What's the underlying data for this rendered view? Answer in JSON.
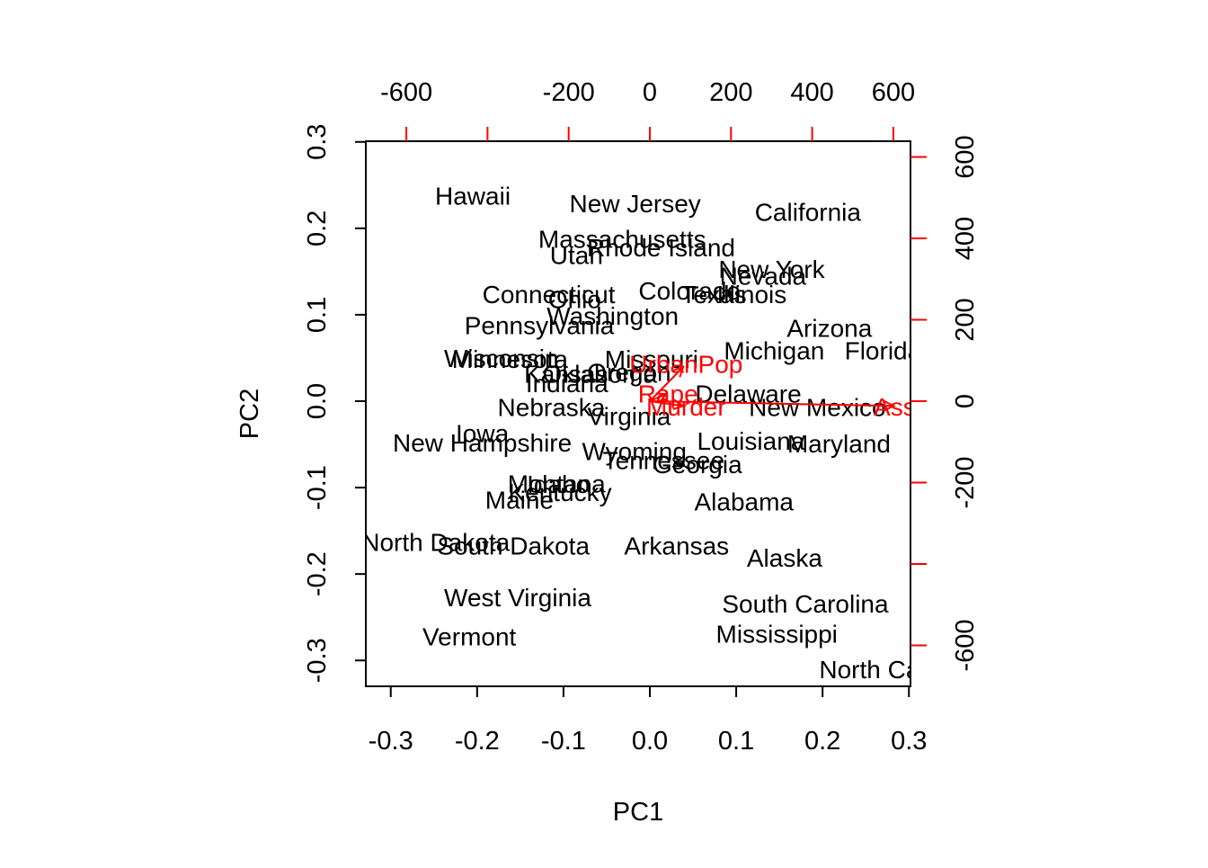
{
  "chart_data": {
    "type": "scatter",
    "title": "",
    "xlabel": "PC1",
    "ylabel": "PC2",
    "xlim": [
      -0.3,
      0.3
    ],
    "ylim": [
      -0.3,
      0.3
    ],
    "x_ticks": [
      "-0.3",
      "-0.2",
      "-0.1",
      "0.0",
      "0.1",
      "0.2",
      "0.3"
    ],
    "y_ticks": [
      "-0.3",
      "-0.2",
      "-0.1",
      "0.0",
      "0.1",
      "0.2",
      "0.3"
    ],
    "top_ticks": [
      "-600",
      "-200",
      "0",
      "200",
      "400",
      "600"
    ],
    "right_ticks": [
      "600",
      "400",
      "200",
      "0",
      "-200",
      "-600"
    ],
    "secondary_color": "#ff0000",
    "points": [
      {
        "label": "Hawaii",
        "x": -0.205,
        "y": 0.238
      },
      {
        "label": "New Jersey",
        "x": -0.017,
        "y": 0.229
      },
      {
        "label": "California",
        "x": 0.183,
        "y": 0.219
      },
      {
        "label": "Massachusetts",
        "x": -0.032,
        "y": 0.188
      },
      {
        "label": "Rhode Island",
        "x": 0.013,
        "y": 0.178
      },
      {
        "label": "Utah",
        "x": -0.085,
        "y": 0.169
      },
      {
        "label": "New York",
        "x": 0.141,
        "y": 0.153
      },
      {
        "label": "Nevada",
        "x": 0.131,
        "y": 0.145
      },
      {
        "label": "Colorado",
        "x": 0.046,
        "y": 0.128
      },
      {
        "label": "Texas",
        "x": 0.074,
        "y": 0.124
      },
      {
        "label": "Illinois",
        "x": 0.118,
        "y": 0.124
      },
      {
        "label": "Connecticut",
        "x": -0.117,
        "y": 0.124
      },
      {
        "label": "Ohio",
        "x": -0.087,
        "y": 0.118
      },
      {
        "label": "Washington",
        "x": -0.043,
        "y": 0.099
      },
      {
        "label": "Pennsylvania",
        "x": -0.128,
        "y": 0.088
      },
      {
        "label": "Arizona",
        "x": 0.208,
        "y": 0.085
      },
      {
        "label": "Michigan",
        "x": 0.144,
        "y": 0.059
      },
      {
        "label": "Florida",
        "x": 0.27,
        "y": 0.059
      },
      {
        "label": "Wisconsin",
        "x": -0.172,
        "y": 0.05
      },
      {
        "label": "Minnesota",
        "x": -0.162,
        "y": 0.049
      },
      {
        "label": "Missouri",
        "x": 0.002,
        "y": 0.049
      },
      {
        "label": "Oregon",
        "x": -0.024,
        "y": 0.034
      },
      {
        "label": "Oklahoma",
        "x": -0.058,
        "y": 0.032
      },
      {
        "label": "Kansas",
        "x": -0.097,
        "y": 0.032
      },
      {
        "label": "Indiana",
        "x": -0.096,
        "y": 0.021
      },
      {
        "label": "Delaware",
        "x": 0.114,
        "y": 0.009
      },
      {
        "label": "Nebraska",
        "x": -0.114,
        "y": -0.007
      },
      {
        "label": "New Mexico",
        "x": 0.194,
        "y": -0.007
      },
      {
        "label": "Virginia",
        "x": -0.024,
        "y": -0.017
      },
      {
        "label": "Iowa",
        "x": -0.194,
        "y": -0.037
      },
      {
        "label": "New Hampshire",
        "x": -0.194,
        "y": -0.048
      },
      {
        "label": "Louisiana",
        "x": 0.117,
        "y": -0.046
      },
      {
        "label": "Maryland",
        "x": 0.219,
        "y": -0.049
      },
      {
        "label": "Wyoming",
        "x": -0.018,
        "y": -0.058
      },
      {
        "label": "Tennessee",
        "x": 0.016,
        "y": -0.068
      },
      {
        "label": "Georgia",
        "x": 0.055,
        "y": -0.073
      },
      {
        "label": "Montana",
        "x": -0.108,
        "y": -0.095
      },
      {
        "label": "Idaho",
        "x": -0.106,
        "y": -0.096
      },
      {
        "label": "Kentucky",
        "x": -0.104,
        "y": -0.105
      },
      {
        "label": "Maine",
        "x": -0.151,
        "y": -0.114
      },
      {
        "label": "Alabama",
        "x": 0.109,
        "y": -0.116
      },
      {
        "label": "North Dakota",
        "x": -0.248,
        "y": -0.163
      },
      {
        "label": "South Dakota",
        "x": -0.158,
        "y": -0.167
      },
      {
        "label": "Arkansas",
        "x": 0.031,
        "y": -0.167
      },
      {
        "label": "Alaska",
        "x": 0.156,
        "y": -0.181
      },
      {
        "label": "West Virginia",
        "x": -0.153,
        "y": -0.227
      },
      {
        "label": "South Carolina",
        "x": 0.18,
        "y": -0.234
      },
      {
        "label": "Mississippi",
        "x": 0.147,
        "y": -0.269
      },
      {
        "label": "Vermont",
        "x": -0.209,
        "y": -0.272
      },
      {
        "label": "North Carolina",
        "x": 0.29,
        "y": -0.31
      }
    ],
    "loadings": [
      {
        "label": "UrbanPop",
        "x": 0.042,
        "y": 0.043
      },
      {
        "label": "Rape",
        "x": 0.021,
        "y": 0.009
      },
      {
        "label": "Murder",
        "x": 0.042,
        "y": -0.006
      },
      {
        "label": "Assault",
        "x": 0.307,
        "y": -0.006
      }
    ]
  }
}
